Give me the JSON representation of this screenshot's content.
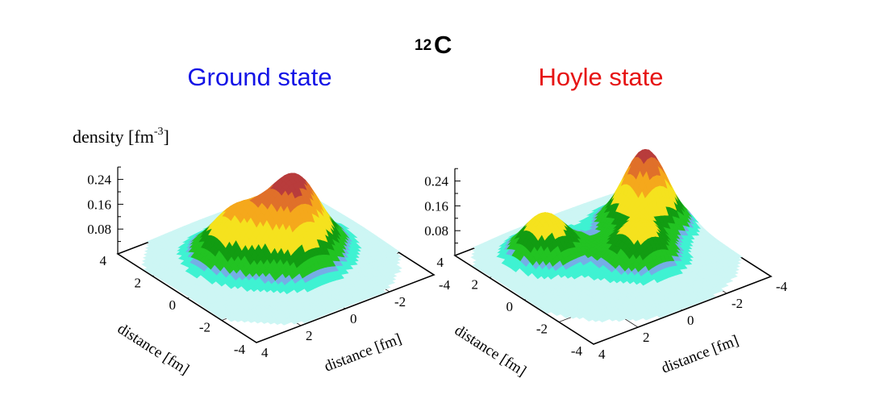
{
  "figure": {
    "nucleus_mass": "12",
    "nucleus_symbol": "C",
    "z_label_main": "density [fm",
    "z_label_exp": "-3",
    "z_label_close": "]"
  },
  "colors": {
    "ground_title": "#1414e6",
    "hoyle_title": "#e61414",
    "levels": [
      "#cdf6f4",
      "#3ff2d2",
      "#74aee6",
      "#22c322",
      "#129c12",
      "#f5e21e",
      "#f5a81c",
      "#e0702a",
      "#b83c3c"
    ],
    "level_bounds": [
      0.004,
      0.025,
      0.04,
      0.048,
      0.075,
      0.105,
      0.16,
      0.2,
      0.235
    ]
  },
  "chart_data": [
    {
      "type": "surface",
      "title": "Ground state",
      "xlabel": "distance [fm]",
      "ylabel": "distance [fm]",
      "zlabel": "density [fm-3]",
      "xlim": [
        -4,
        4
      ],
      "ylim": [
        -4,
        4
      ],
      "zlim": [
        0,
        0.28
      ],
      "xticks": [
        "4",
        "2",
        "0",
        "-2",
        "-4"
      ],
      "yticks": [
        "4",
        "2",
        "0",
        "-2",
        "-4"
      ],
      "zticks": [
        "0.08",
        "0.16",
        "0.24"
      ],
      "zmax": 0.26,
      "peaks": [
        {
          "x": 1.0,
          "y": 1.1,
          "amp": 0.13,
          "sigma": 0.9
        },
        {
          "x": 0.3,
          "y": -1.2,
          "amp": 0.16,
          "sigma": 0.9
        },
        {
          "x": -0.6,
          "y": -0.2,
          "amp": 0.12,
          "sigma": 0.9
        },
        {
          "x": 0.2,
          "y": 0.0,
          "amp": 0.05,
          "sigma": 2.0
        }
      ]
    },
    {
      "type": "surface",
      "title": "Hoyle state",
      "xlabel": "distance [fm]",
      "ylabel": "distance [fm]",
      "zlabel": "density [fm-3]",
      "xlim": [
        -4,
        4
      ],
      "ylim": [
        -4,
        4
      ],
      "zlim": [
        0,
        0.28
      ],
      "xticks": [
        "4",
        "2",
        "0",
        "-2",
        "-4"
      ],
      "yticks": [
        "4",
        "2",
        "0",
        "-2",
        "-4"
      ],
      "zticks": [
        "0.08",
        "0.16",
        "0.24"
      ],
      "zmax": 0.27,
      "peaks": [
        {
          "x": 1.8,
          "y": 1.7,
          "amp": 0.13,
          "sigma": 0.8
        },
        {
          "x": -0.6,
          "y": -0.8,
          "amp": 0.11,
          "sigma": 0.8
        },
        {
          "x": 1.3,
          "y": -2.5,
          "amp": 0.24,
          "sigma": 0.8
        },
        {
          "x": 0.5,
          "y": -0.3,
          "amp": 0.035,
          "sigma": 2.2
        }
      ]
    }
  ]
}
